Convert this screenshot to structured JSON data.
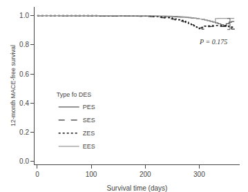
{
  "chart_data": {
    "type": "step",
    "title": "",
    "xlabel": "Survival time (days)",
    "ylabel": "12-month MACE-free survival",
    "xlim": [
      -5,
      375
    ],
    "ylim": [
      -0.02,
      1.06
    ],
    "xticks": [
      0,
      100,
      200,
      300
    ],
    "yticks": [
      {
        "value": 0.0,
        "label": "0.0"
      },
      0.2,
      0.4,
      0.6,
      0.8,
      {
        "value": 1.0,
        "label": "1.0"
      }
    ],
    "grid": false,
    "legend": "lower left",
    "legend_title": "Type fo DES",
    "series": [
      {
        "name": "PES",
        "color": "#555555",
        "line_style": "solid",
        "x": [
          0,
          5,
          10,
          15,
          20,
          25,
          30,
          35,
          40,
          50,
          60,
          70,
          80,
          90,
          100,
          110,
          120,
          130,
          140,
          150,
          160,
          170,
          180,
          190,
          200,
          210,
          215,
          220,
          225,
          230,
          235,
          240,
          245,
          250,
          255,
          260,
          265,
          270,
          275,
          280,
          285,
          290,
          295,
          300,
          305,
          310,
          315,
          320,
          325,
          330,
          335,
          340,
          345,
          350,
          355,
          360,
          365
        ],
        "values": [
          1.0,
          1.0,
          1.0,
          1.0,
          1.0,
          1.0,
          1.0,
          1.0,
          0.999,
          0.999,
          0.999,
          0.999,
          0.999,
          0.999,
          0.999,
          0.999,
          0.998,
          0.998,
          0.998,
          0.998,
          0.998,
          0.997,
          0.997,
          0.997,
          0.997,
          0.997,
          0.996,
          0.996,
          0.996,
          0.995,
          0.995,
          0.994,
          0.994,
          0.993,
          0.992,
          0.991,
          0.99,
          0.989,
          0.988,
          0.986,
          0.984,
          0.982,
          0.98,
          0.977,
          0.974,
          0.97,
          0.966,
          0.961,
          0.956,
          0.95,
          0.944,
          0.937,
          0.93,
          0.945,
          0.955,
          0.96,
          0.96
        ]
      },
      {
        "name": "SES",
        "color": "#333333",
        "line_style": "dashed",
        "x": [
          0,
          5,
          10,
          15,
          20,
          25,
          30,
          35,
          40,
          50,
          60,
          70,
          80,
          90,
          100,
          110,
          120,
          130,
          140,
          150,
          160,
          170,
          180,
          190,
          200,
          210,
          215,
          220,
          225,
          230,
          235,
          240,
          245,
          250,
          255,
          260,
          265,
          270,
          275,
          280,
          285,
          290,
          295,
          300,
          305,
          310,
          315,
          320,
          325,
          330,
          335,
          340,
          345,
          350,
          355,
          360,
          365
        ],
        "values": [
          1.0,
          1.0,
          1.0,
          1.0,
          1.0,
          1.0,
          1.0,
          1.0,
          1.0,
          1.0,
          1.0,
          1.0,
          1.0,
          1.0,
          0.999,
          0.999,
          0.999,
          0.999,
          0.998,
          0.998,
          0.997,
          0.997,
          0.996,
          0.995,
          0.994,
          0.993,
          0.992,
          0.99,
          0.988,
          0.986,
          0.984,
          0.981,
          0.978,
          0.975,
          0.971,
          0.967,
          0.962,
          0.957,
          0.951,
          0.945,
          0.938,
          0.931,
          0.924,
          0.916,
          0.908,
          0.92,
          0.924,
          0.925,
          0.926,
          0.926,
          0.926,
          0.926,
          0.926,
          0.92,
          0.914,
          0.908,
          0.905
        ]
      },
      {
        "name": "ZES",
        "color": "#111111",
        "line_style": "dotted",
        "x": [
          0,
          5,
          10,
          15,
          20,
          25,
          30,
          35,
          40,
          50,
          60,
          70,
          80,
          90,
          100,
          110,
          120,
          130,
          140,
          150,
          160,
          170,
          180,
          190,
          200,
          210,
          215,
          220,
          225,
          230,
          235,
          240,
          245,
          250,
          255,
          260,
          265,
          270,
          275,
          280,
          285,
          290,
          295,
          300,
          305,
          310,
          315,
          320,
          325,
          330,
          335,
          340,
          345,
          350,
          355,
          360,
          365
        ],
        "values": [
          1.0,
          1.0,
          1.0,
          1.0,
          1.0,
          1.0,
          1.0,
          1.0,
          1.0,
          1.0,
          1.0,
          1.0,
          1.0,
          1.0,
          1.0,
          0.999,
          0.999,
          0.999,
          0.999,
          0.999,
          0.998,
          0.998,
          0.997,
          0.997,
          0.997,
          0.996,
          0.995,
          0.994,
          0.993,
          0.991,
          0.989,
          0.987,
          0.984,
          0.981,
          0.977,
          0.972,
          0.967,
          0.961,
          0.954,
          0.947,
          0.939,
          0.93,
          0.921,
          0.911,
          0.92,
          0.928,
          0.93,
          0.932,
          0.932,
          0.932,
          0.932,
          0.932,
          0.932,
          0.928,
          0.924,
          0.921,
          0.92
        ]
      },
      {
        "name": "EES",
        "color": "#999999",
        "line_style": "solid",
        "x": [
          0,
          5,
          10,
          15,
          20,
          25,
          30,
          35,
          40,
          50,
          60,
          70,
          80,
          90,
          100,
          110,
          120,
          130,
          140,
          150,
          160,
          170,
          180,
          190,
          200,
          210,
          215,
          220,
          225,
          230,
          235,
          240,
          245,
          250,
          255,
          260,
          265,
          270,
          275,
          280,
          285,
          290,
          295,
          300,
          305,
          310,
          315,
          320,
          325,
          330,
          335,
          340,
          345,
          350,
          355,
          360,
          365
        ],
        "values": [
          1.0,
          1.0,
          1.0,
          1.0,
          1.0,
          1.0,
          1.0,
          1.0,
          1.0,
          1.0,
          1.0,
          1.0,
          1.0,
          1.0,
          1.0,
          1.0,
          1.0,
          1.0,
          1.0,
          0.999,
          0.999,
          0.999,
          0.999,
          0.999,
          0.999,
          0.999,
          0.999,
          0.999,
          0.998,
          0.998,
          0.998,
          0.997,
          0.997,
          0.996,
          0.995,
          0.994,
          0.993,
          0.992,
          0.99,
          0.988,
          0.986,
          0.983,
          0.98,
          0.977,
          0.974,
          0.97,
          0.966,
          0.961,
          0.956,
          0.98,
          0.981,
          0.981,
          0.981,
          0.981,
          0.981,
          0.981,
          0.981
        ]
      }
    ],
    "bracket": {
      "x": 357,
      "y_top": 0.981,
      "y_bottom": 0.905,
      "tick_width": 5,
      "color": "#555555"
    },
    "annotations": [
      {
        "text": "P = 0.175",
        "x": 355,
        "y": 0.858
      }
    ]
  }
}
